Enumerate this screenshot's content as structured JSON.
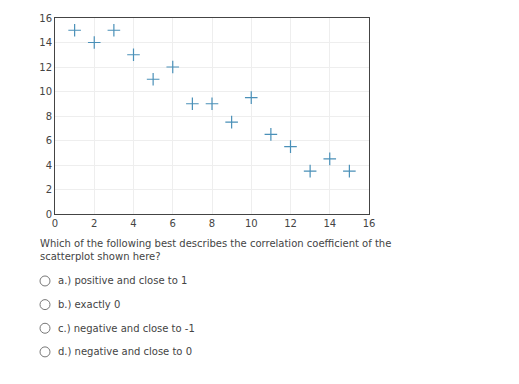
{
  "chart_data": {
    "type": "scatter",
    "x": [
      1,
      2,
      3,
      4,
      5,
      6,
      7,
      8,
      9,
      10,
      11,
      12,
      13,
      14,
      15
    ],
    "values": [
      15,
      14,
      15,
      13,
      11,
      12,
      9,
      9,
      7.5,
      9.5,
      6.5,
      5.5,
      3.5,
      4.5,
      3.5
    ],
    "color": "#4a90b8",
    "marker": "cross",
    "xlim": [
      0,
      16
    ],
    "ylim": [
      0,
      16
    ],
    "xticks": [
      0,
      2,
      4,
      6,
      8,
      10,
      12,
      14,
      16
    ],
    "yticks": [
      0,
      2,
      4,
      6,
      8,
      10,
      12,
      14,
      16
    ],
    "grid": true,
    "annotations": [
      "Which of the following best describes the correlation coefficient of the scatterplot shown here?",
      "a.) positive and close to 1",
      "b.) exactly 0",
      "c.) negative and close to -1",
      "d.) negative and close to 0"
    ]
  }
}
